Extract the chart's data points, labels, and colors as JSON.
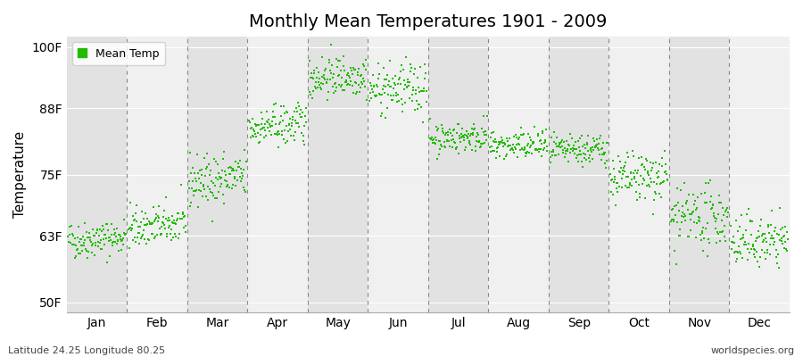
{
  "title": "Monthly Mean Temperatures 1901 - 2009",
  "ylabel": "Temperature",
  "yticks": [
    50,
    63,
    75,
    88,
    100
  ],
  "ytick_labels": [
    "50F",
    "63F",
    "75F",
    "88F",
    "100F"
  ],
  "ylim": [
    48,
    102
  ],
  "months": [
    "Jan",
    "Feb",
    "Mar",
    "Apr",
    "May",
    "Jun",
    "Jul",
    "Aug",
    "Sep",
    "Oct",
    "Nov",
    "Dec"
  ],
  "xlim": [
    0,
    12
  ],
  "n_years": 109,
  "dot_color": "#22bb00",
  "dot_size": 4,
  "bg_color_light": "#f0f0f0",
  "bg_color_dark": "#e2e2e2",
  "fig_bg_color": "#ffffff",
  "legend_label": "Mean Temp",
  "bottom_left": "Latitude 24.25 Longitude 80.25",
  "bottom_right": "worldspecies.org",
  "monthly_mean_F": [
    62.0,
    64.5,
    73.5,
    84.0,
    94.0,
    91.5,
    82.0,
    80.5,
    79.5,
    74.0,
    66.0,
    61.5
  ],
  "monthly_trend_F": [
    0.008,
    0.008,
    0.01,
    0.01,
    0.005,
    0.005,
    0.005,
    0.003,
    0.005,
    0.005,
    0.008,
    0.008
  ],
  "monthly_std_F": [
    1.8,
    2.0,
    2.5,
    2.0,
    2.0,
    2.5,
    1.5,
    1.5,
    1.5,
    2.5,
    3.0,
    2.5
  ],
  "dashed_line_color": "#888888",
  "seed": 42
}
